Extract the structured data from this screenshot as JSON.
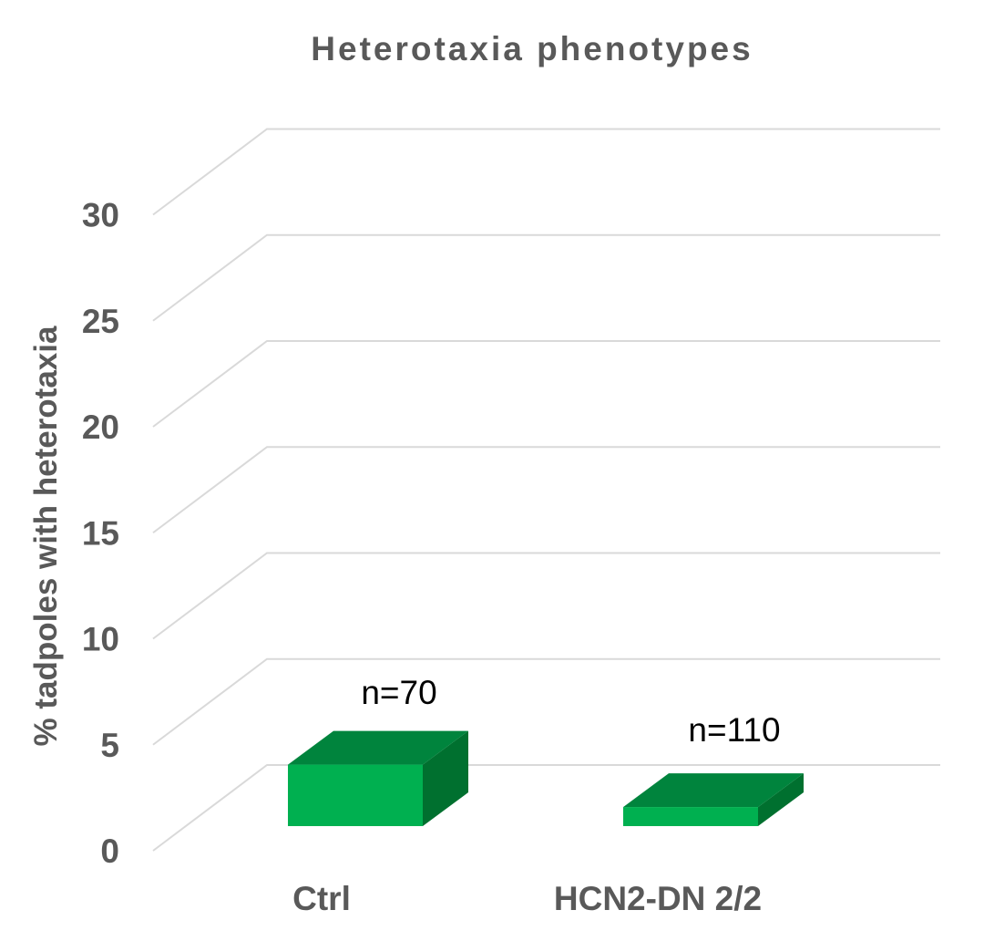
{
  "chart_data": {
    "type": "bar",
    "title": "Heterotaxia phenotypes",
    "ylabel": "% tadpoles with heterotaxia",
    "xlabel": "",
    "categories": [
      "Ctrl",
      "HCN2-DN 2/2"
    ],
    "values": [
      2.9,
      0.9
    ],
    "annotations": [
      "n=70",
      "n=110"
    ],
    "ylim": [
      0,
      30
    ],
    "yticks": [
      0,
      5,
      10,
      15,
      20,
      25,
      30
    ],
    "grid": true,
    "legend": "none",
    "style": "3d-column",
    "colors": {
      "front": "#00b050",
      "top": "#00843d",
      "side": "#00702f",
      "grid": "#d9d9d9",
      "text": "#595959"
    }
  }
}
